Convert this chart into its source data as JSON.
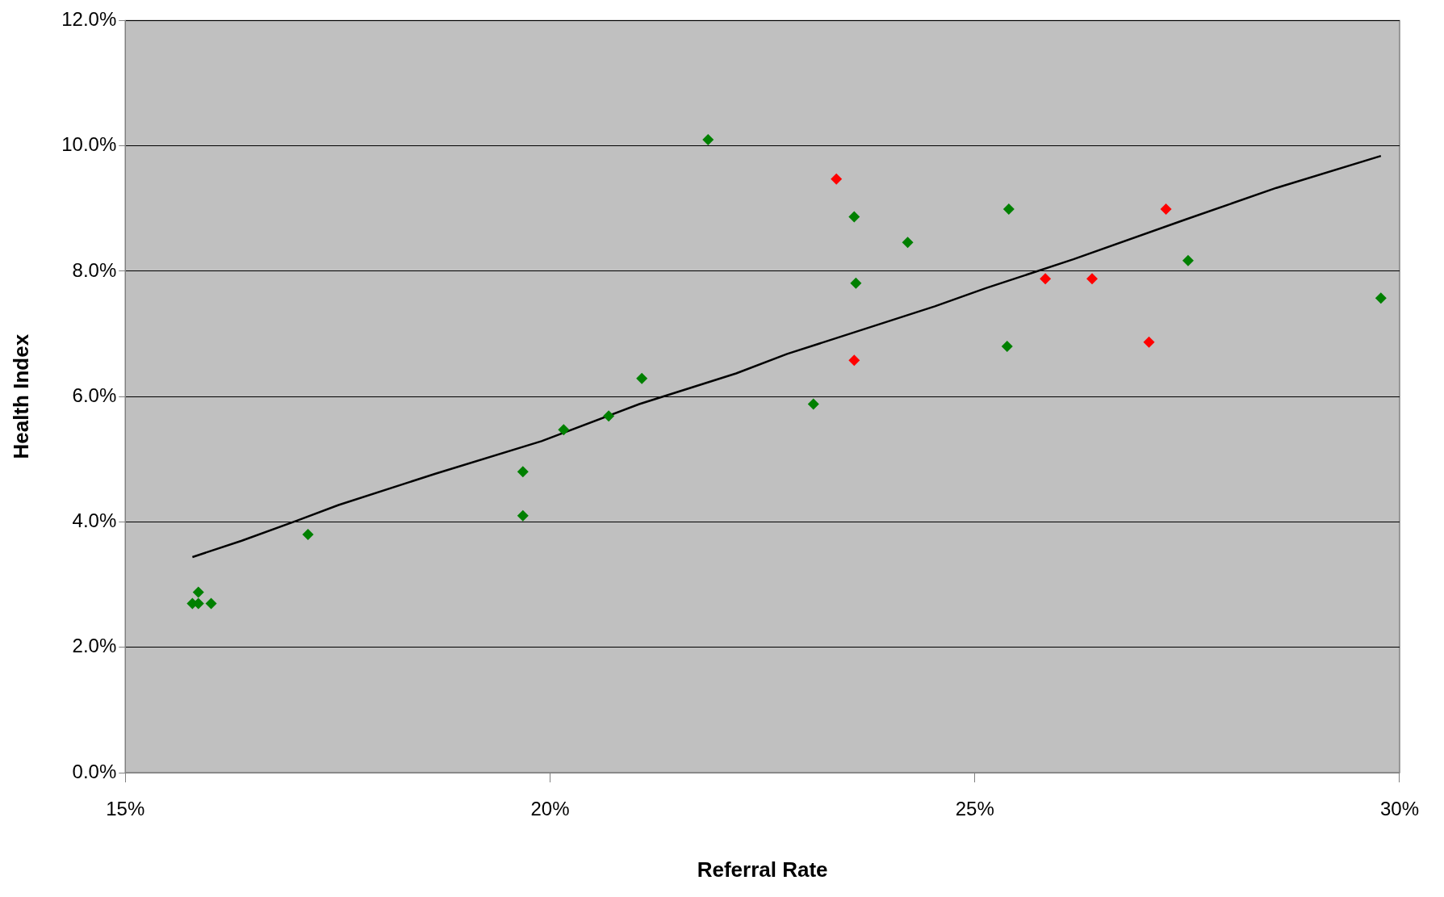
{
  "chart_data": {
    "type": "scatter",
    "xlabel": "Referral Rate",
    "ylabel": "Health Index",
    "xlim": [
      15,
      30
    ],
    "xticks": [
      {
        "value": 15,
        "label": "15%"
      },
      {
        "value": 20,
        "label": "20%"
      },
      {
        "value": 25,
        "label": "25%"
      },
      {
        "value": 30,
        "label": "30%"
      }
    ],
    "ylim": [
      0,
      12
    ],
    "yticks": [
      {
        "value": 0,
        "label": "0.0%"
      },
      {
        "value": 2,
        "label": "2.0%"
      },
      {
        "value": 4,
        "label": "4.0%"
      },
      {
        "value": 6,
        "label": "6.0%"
      },
      {
        "value": 8,
        "label": "8.0%"
      },
      {
        "value": 10,
        "label": "10.0%"
      },
      {
        "value": 12,
        "label": "12.0%"
      }
    ],
    "grid": "y",
    "legend": false,
    "series": [
      {
        "marker": "diamond",
        "color": "#008000",
        "x": [
          15.79,
          15.86,
          15.86,
          16.01,
          17.15,
          19.68,
          19.68,
          20.16,
          20.69,
          21.08,
          21.86,
          23.1,
          23.58,
          23.6,
          24.21,
          25.4,
          25.38,
          27.51,
          29.78
        ],
        "values": [
          2.7,
          2.88,
          2.7,
          2.7,
          3.8,
          4.8,
          4.1,
          5.47,
          5.69,
          6.29,
          10.1,
          5.88,
          8.87,
          7.81,
          8.46,
          8.99,
          6.8,
          8.17,
          7.57
        ]
      },
      {
        "marker": "diamond",
        "color": "#ff0000",
        "x": [
          23.37,
          23.58,
          25.83,
          26.38,
          27.05,
          27.25
        ],
        "values": [
          9.47,
          6.58,
          7.88,
          7.88,
          6.87,
          8.99
        ]
      },
      {
        "type": "line",
        "marker": "none",
        "color": "#000000",
        "x": [
          15.79,
          16.37,
          17.02,
          17.51,
          18.65,
          19.9,
          21.05,
          22.19,
          22.79,
          24.53,
          25.13,
          26.16,
          27.47,
          28.55,
          29.78
        ],
        "values": [
          3.44,
          3.7,
          4.02,
          4.27,
          4.77,
          5.29,
          5.88,
          6.37,
          6.68,
          7.44,
          7.73,
          8.19,
          8.82,
          9.33,
          9.84
        ]
      }
    ]
  }
}
